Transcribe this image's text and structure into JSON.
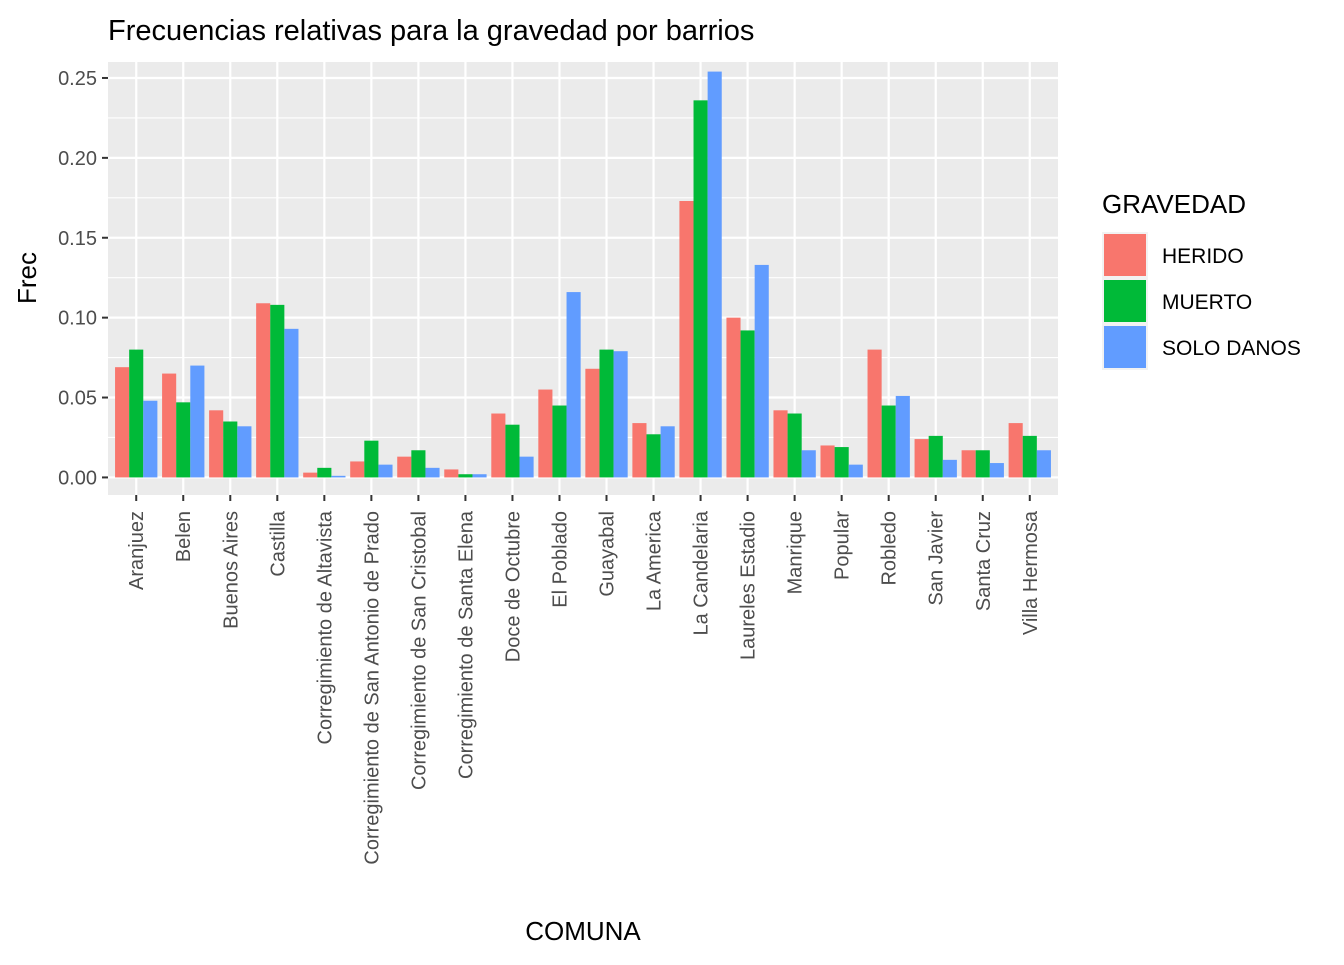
{
  "chart_data": {
    "type": "bar",
    "title": "Frecuencias relativas para la gravedad por barrios",
    "xlabel": "COMUNA",
    "ylabel": "Frec",
    "ylim": [
      -0.011,
      0.26
    ],
    "yticks": [
      0.0,
      0.05,
      0.1,
      0.15,
      0.2,
      0.25
    ],
    "ytick_labels": [
      "0.00",
      "0.05",
      "0.10",
      "0.15",
      "0.20",
      "0.25"
    ],
    "grid": true,
    "legend": {
      "title": "GRAVEDAD",
      "placement": "right"
    },
    "categories": [
      "Aranjuez",
      "Belen",
      "Buenos Aires",
      "Castilla",
      "Corregimiento de Altavista",
      "Corregimiento de San Antonio de Prado",
      "Corregimiento de San Cristobal",
      "Corregimiento de Santa Elena",
      "Doce de Octubre",
      "El Poblado",
      "Guayabal",
      "La America",
      "La Candelaria",
      "Laureles Estadio",
      "Manrique",
      "Popular",
      "Robledo",
      "San Javier",
      "Santa Cruz",
      "Villa Hermosa"
    ],
    "series": [
      {
        "name": "HERIDO",
        "color": "#F8766D",
        "values": [
          0.069,
          0.065,
          0.042,
          0.109,
          0.003,
          0.01,
          0.013,
          0.005,
          0.04,
          0.055,
          0.068,
          0.034,
          0.173,
          0.1,
          0.042,
          0.02,
          0.08,
          0.024,
          0.017,
          0.034
        ]
      },
      {
        "name": "MUERTO",
        "color": "#00BA38",
        "values": [
          0.08,
          0.047,
          0.035,
          0.108,
          0.006,
          0.023,
          0.017,
          0.002,
          0.033,
          0.045,
          0.08,
          0.027,
          0.236,
          0.092,
          0.04,
          0.019,
          0.045,
          0.026,
          0.017,
          0.026
        ]
      },
      {
        "name": "SOLO DANOS",
        "color": "#619CFF",
        "values": [
          0.048,
          0.07,
          0.032,
          0.093,
          0.001,
          0.008,
          0.006,
          0.002,
          0.013,
          0.116,
          0.079,
          0.032,
          0.254,
          0.133,
          0.017,
          0.008,
          0.051,
          0.011,
          0.009,
          0.017
        ]
      }
    ],
    "colors": {
      "panel_bg": "#EBEBEB",
      "grid": "#FFFFFF",
      "tick_text": "#4D4D4D",
      "axis_tick": "#333333"
    }
  }
}
